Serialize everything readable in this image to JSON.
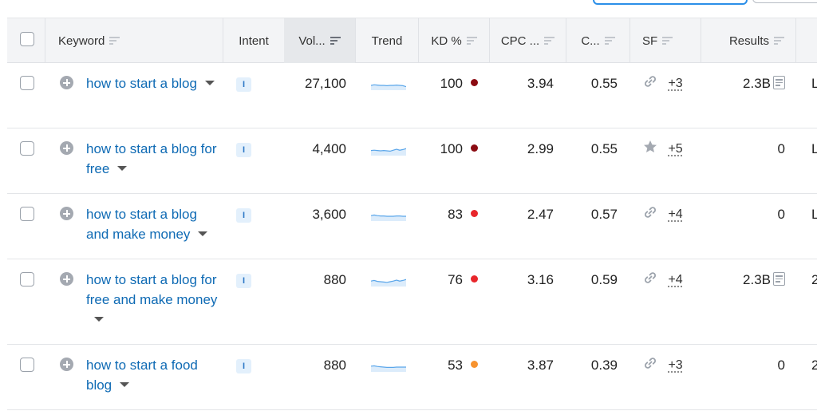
{
  "colors": {
    "link": "#0e6ab4",
    "kd_very_hard": "#8b0b12",
    "kd_hard": "#e8262b",
    "kd_difficult": "#f7932f",
    "trend_fill": "#dcecfb",
    "trend_line": "#5aa6ea"
  },
  "icons": [
    "checkbox-icon",
    "add-circle-icon",
    "caret-down-icon",
    "filter-icon",
    "link-icon",
    "star-icon",
    "document-icon"
  ],
  "header": {
    "keyword": "Keyword",
    "intent": "Intent",
    "volume": "Vol...",
    "trend": "Trend",
    "kd": "KD %",
    "cpc": "CPC ...",
    "com": "C...",
    "sf": "SF",
    "results": "Results"
  },
  "rows": [
    {
      "keyword": "how to start a blog",
      "intent": "I",
      "volume": "27,100",
      "trend": [
        0.5,
        0.6,
        0.55,
        0.5,
        0.5,
        0.45,
        0.5,
        0.5,
        0.55,
        0.5,
        0.45,
        0.3
      ],
      "kd": "100",
      "kd_level": "very_hard",
      "cpc": "3.94",
      "com": "0.55",
      "sf_icon": "link",
      "sf_more": "+3",
      "results": "2.3B",
      "results_doc": true,
      "cut": "L"
    },
    {
      "keyword": "how to start a blog for free",
      "intent": "I",
      "volume": "4,400",
      "trend": [
        0.55,
        0.6,
        0.55,
        0.5,
        0.55,
        0.5,
        0.45,
        0.6,
        0.75,
        0.6,
        0.7,
        0.85
      ],
      "kd": "100",
      "kd_level": "very_hard",
      "cpc": "2.99",
      "com": "0.55",
      "sf_icon": "star",
      "sf_more": "+5",
      "results": "0",
      "results_doc": false,
      "cut": "L"
    },
    {
      "keyword": "how to start a blog and make money",
      "intent": "I",
      "volume": "3,600",
      "trend": [
        0.6,
        0.7,
        0.6,
        0.55,
        0.55,
        0.5,
        0.5,
        0.5,
        0.55,
        0.55,
        0.5,
        0.5
      ],
      "kd": "83",
      "kd_level": "hard",
      "cpc": "2.47",
      "com": "0.57",
      "sf_icon": "link",
      "sf_more": "+4",
      "results": "0",
      "results_doc": false,
      "cut": "L"
    },
    {
      "keyword": "how to start a blog for free and make money",
      "intent": "I",
      "volume": "880",
      "trend": [
        0.6,
        0.7,
        0.55,
        0.5,
        0.45,
        0.4,
        0.5,
        0.6,
        0.75,
        0.6,
        0.7,
        0.85
      ],
      "kd": "76",
      "kd_level": "hard",
      "cpc": "3.16",
      "com": "0.59",
      "sf_icon": "link",
      "sf_more": "+4",
      "results": "2.3B",
      "results_doc": true,
      "cut": "2"
    },
    {
      "keyword": "how to start a food blog",
      "intent": "I",
      "volume": "880",
      "trend": [
        0.65,
        0.7,
        0.6,
        0.55,
        0.5,
        0.45,
        0.45,
        0.45,
        0.5,
        0.5,
        0.5,
        0.5
      ],
      "kd": "53",
      "kd_level": "difficult",
      "cpc": "3.87",
      "com": "0.39",
      "sf_icon": "link",
      "sf_more": "+3",
      "results": "0",
      "results_doc": false,
      "cut": "2"
    }
  ]
}
